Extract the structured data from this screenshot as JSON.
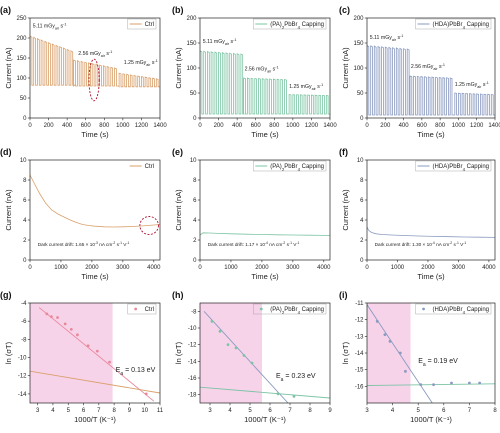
{
  "chart_data": [
    {
      "id": "a",
      "panel_label": "(a)",
      "type": "line",
      "xlabel": "Time (s)",
      "ylabel": "Current (nA)",
      "xlim": [
        0,
        1400
      ],
      "ylim": [
        0,
        250
      ],
      "xticks": [
        0,
        200,
        400,
        600,
        800,
        1000,
        1200,
        1400
      ],
      "yticks": [
        0,
        50,
        100,
        150,
        200,
        250
      ],
      "legend": {
        "text": "Ctrl",
        "position": "top-right"
      },
      "color": "#d9a06b",
      "series": [
        {
          "name": "Ctrl",
          "type": "pulse",
          "period": 40,
          "duty": 0.5,
          "segments": [
            {
              "t0": 0,
              "t1": 470,
              "base": 82,
              "on_start": 205,
              "on_end": 168
            },
            {
              "t0": 470,
              "t1": 960,
              "base": 80,
              "on_start": 145,
              "on_end": 125
            },
            {
              "t0": 960,
              "t1": 1400,
              "base": 78,
              "on_start": 112,
              "on_end": 98
            }
          ]
        }
      ],
      "annotations": [
        {
          "text": "5.11 mGy",
          "sub": "air",
          "tail": " s",
          "sup": "-1",
          "x": 30,
          "y": 226
        },
        {
          "text": "2.56 mGy",
          "sub": "air",
          "tail": " s",
          "sup": "-1",
          "x": 520,
          "y": 158
        },
        {
          "text": "1.25 mGy",
          "sub": "air",
          "tail": " s",
          "sup": "-1",
          "x": 1010,
          "y": 135
        }
      ],
      "circles": [
        {
          "cx": 690,
          "cy": 95,
          "rx": 55,
          "ry": 52
        }
      ]
    },
    {
      "id": "b",
      "panel_label": "(b)",
      "type": "line",
      "xlabel": "Time (s)",
      "ylabel": "Current (nA)",
      "xlim": [
        0,
        1400
      ],
      "ylim": [
        0,
        200
      ],
      "xticks": [
        0,
        200,
        400,
        600,
        800,
        1000,
        1200,
        1400
      ],
      "yticks": [
        0,
        50,
        100,
        150,
        200
      ],
      "legend": {
        "text": "(PA)",
        "sub": "2",
        "tail": "PbBr",
        "sub2": "4",
        "tail2": " Capping",
        "position": "top-right"
      },
      "color": "#7cc4a4",
      "series": [
        {
          "name": "(PA)2PbBr4 Capping",
          "type": "pulse",
          "period": 40,
          "duty": 0.5,
          "segments": [
            {
              "t0": 0,
              "t1": 470,
              "base": 8,
              "on_start": 134,
              "on_end": 128
            },
            {
              "t0": 470,
              "t1": 960,
              "base": 8,
              "on_start": 80,
              "on_end": 77
            },
            {
              "t0": 960,
              "t1": 1400,
              "base": 8,
              "on_start": 47,
              "on_end": 45
            }
          ]
        }
      ],
      "annotations": [
        {
          "text": "5.11 mGy",
          "sub": "air",
          "tail": " s",
          "sup": "-1",
          "x": 30,
          "y": 150
        },
        {
          "text": "2.56 mGy",
          "sub": "air",
          "tail": " s",
          "sup": "-1",
          "x": 480,
          "y": 95
        },
        {
          "text": "1.25 mGy",
          "sub": "air",
          "tail": " s",
          "sup": "-1",
          "x": 960,
          "y": 60
        }
      ]
    },
    {
      "id": "c",
      "panel_label": "(c)",
      "type": "line",
      "xlabel": "Time (s)",
      "ylabel": "Current (nA)",
      "xlim": [
        0,
        1400
      ],
      "ylim": [
        0,
        200
      ],
      "xticks": [
        0,
        200,
        400,
        600,
        800,
        1000,
        1200,
        1400
      ],
      "yticks": [
        0,
        50,
        100,
        150,
        200
      ],
      "legend": {
        "text": "(HDA)PbBr",
        "sub": "4",
        "tail": " Capping",
        "position": "top-right"
      },
      "color": "#8a9ac0",
      "series": [
        {
          "name": "(HDA)PbBr4 Capping",
          "type": "pulse",
          "period": 40,
          "duty": 0.5,
          "segments": [
            {
              "t0": 0,
              "t1": 470,
              "base": 6,
              "on_start": 145,
              "on_end": 138
            },
            {
              "t0": 470,
              "t1": 960,
              "base": 6,
              "on_start": 84,
              "on_end": 80
            },
            {
              "t0": 960,
              "t1": 1400,
              "base": 6,
              "on_start": 50,
              "on_end": 47
            }
          ]
        }
      ],
      "annotations": [
        {
          "text": "5.11 mGy",
          "sub": "air",
          "tail": " s",
          "sup": "-1",
          "x": 30,
          "y": 158
        },
        {
          "text": "2.56 mGy",
          "sub": "air",
          "tail": " s",
          "sup": "-1",
          "x": 480,
          "y": 100
        },
        {
          "text": "1.25 mGy",
          "sub": "air",
          "tail": " s",
          "sup": "-1",
          "x": 960,
          "y": 64
        }
      ]
    },
    {
      "id": "d",
      "panel_label": "(d)",
      "type": "line",
      "xlabel": "Time (s)",
      "ylabel": "Current (nA)",
      "xlim": [
        0,
        4200
      ],
      "ylim": [
        0,
        10
      ],
      "xticks": [
        0,
        1000,
        2000,
        3000,
        4000
      ],
      "yticks": [
        0,
        2,
        4,
        6,
        8,
        10
      ],
      "legend": {
        "text": "Ctrl",
        "position": "top-right"
      },
      "color": "#d9a06b",
      "series": [
        {
          "name": "Ctrl",
          "x": [
            0,
            150,
            300,
            500,
            700,
            900,
            1100,
            1300,
            1500,
            1700,
            1900,
            2100,
            2400,
            2700,
            3000,
            3300,
            3600,
            3800,
            4000,
            4200
          ],
          "y": [
            8.5,
            7.6,
            6.7,
            5.7,
            5.0,
            4.6,
            4.3,
            4.0,
            3.75,
            3.55,
            3.45,
            3.38,
            3.32,
            3.3,
            3.32,
            3.35,
            3.4,
            3.45,
            3.5,
            3.55
          ]
        }
      ],
      "annotations": [
        {
          "text": "Dark current drift: 1.65 × 10",
          "sup": "-3",
          "tail": " nA cm",
          "sup2": "-2",
          "tail2": " s",
          "sup3": "-1",
          "tail3": " V",
          "sup4": "-1",
          "x": 250,
          "y": 1.4
        }
      ],
      "circles": [
        {
          "cx": 3850,
          "cy": 3.45,
          "rx": 300,
          "ry": 0.9
        }
      ]
    },
    {
      "id": "e",
      "panel_label": "(e)",
      "type": "line",
      "xlabel": "Time (s)",
      "ylabel": "Current (nA)",
      "xlim": [
        0,
        4200
      ],
      "ylim": [
        0,
        10
      ],
      "xticks": [
        0,
        1000,
        2000,
        3000,
        4000
      ],
      "yticks": [
        0,
        2,
        4,
        6,
        8,
        10
      ],
      "legend": {
        "text": "(PA)",
        "sub": "2",
        "tail": "PbBr",
        "sub2": "4",
        "tail2": " Capping",
        "position": "top-right"
      },
      "color": "#7cc4a4",
      "series": [
        {
          "name": "(PA)2PbBr4 Capping",
          "x": [
            0,
            100,
            300,
            600,
            1000,
            1500,
            2000,
            2500,
            3000,
            3500,
            4000,
            4200
          ],
          "y": [
            2.5,
            2.72,
            2.7,
            2.66,
            2.62,
            2.58,
            2.55,
            2.52,
            2.5,
            2.48,
            2.46,
            2.45
          ]
        }
      ],
      "annotations": [
        {
          "text": "Dark current drift: 1.17 × 10",
          "sup": "-4",
          "tail": " nA cm",
          "sup2": "-2",
          "tail2": " s",
          "sup3": "-1",
          "tail3": " V",
          "sup4": "-1",
          "x": 250,
          "y": 1.4
        }
      ]
    },
    {
      "id": "f",
      "panel_label": "(f)",
      "type": "line",
      "xlabel": "Time (s)",
      "ylabel": "Current (nA)",
      "xlim": [
        0,
        4200
      ],
      "ylim": [
        0,
        10
      ],
      "xticks": [
        0,
        1000,
        2000,
        3000,
        4000
      ],
      "yticks": [
        0,
        2,
        4,
        6,
        8,
        10
      ],
      "legend": {
        "text": "(HDA)PbBr",
        "sub": "4",
        "tail": " Capping",
        "position": "top-right"
      },
      "color": "#8a9ac0",
      "series": [
        {
          "name": "(HDA)PbBr4 Capping",
          "x": [
            0,
            60,
            150,
            300,
            500,
            800,
            1200,
            1700,
            2200,
            2700,
            3200,
            3700,
            4200
          ],
          "y": [
            3.3,
            2.95,
            2.75,
            2.62,
            2.55,
            2.5,
            2.45,
            2.4,
            2.36,
            2.33,
            2.3,
            2.28,
            2.26
          ]
        }
      ],
      "annotations": [
        {
          "text": "Dark current drift: 1.30 × 10",
          "sup": "-4",
          "tail": " nA cm",
          "sup2": "-2",
          "tail2": " s",
          "sup3": "-1",
          "tail3": " V",
          "sup4": "-1",
          "x": 250,
          "y": 1.4
        }
      ]
    },
    {
      "id": "g",
      "panel_label": "(g)",
      "type": "scatter",
      "xlabel": "1000/T (K⁻¹)",
      "ylabel": "ln (σT)",
      "xlim": [
        2.5,
        11
      ],
      "ylim": [
        -15,
        -4
      ],
      "xticks": [
        3,
        4,
        5,
        6,
        7,
        8,
        9,
        10,
        11
      ],
      "yticks": [
        -14,
        -12,
        -10,
        -8,
        -6,
        -4
      ],
      "legend": {
        "text": "Ctrl",
        "position": "top-right"
      },
      "color": "#e8889a",
      "shade": {
        "x0": 2.5,
        "x1": 7.9,
        "color": "#f7d3ea"
      },
      "points": {
        "x": [
          3.6,
          3.9,
          4.3,
          4.8,
          5.2,
          5.6,
          6.3,
          6.9,
          7.7,
          10.1
        ],
        "y": [
          -5.2,
          -5.5,
          -5.6,
          -6.3,
          -6.9,
          -7.5,
          -8.7,
          -9.3,
          -10.5,
          -14.0
        ]
      },
      "lines": [
        {
          "x": [
            3.1,
            10.6
          ],
          "y": [
            -4.5,
            -14.8
          ],
          "color": "#e8889a"
        },
        {
          "x": [
            2.5,
            11
          ],
          "y": [
            -11.5,
            -13.9
          ],
          "color": "#d9a06b"
        }
      ],
      "annotation": {
        "text": "E",
        "sub": "a",
        "tail": " = 0.13 eV",
        "x": 8.1,
        "y": -11.6
      }
    },
    {
      "id": "h",
      "panel_label": "(h)",
      "type": "scatter",
      "xlabel": "1000/T (K⁻¹)",
      "ylabel": "ln (σT)",
      "xlim": [
        2.5,
        9
      ],
      "ylim": [
        -19,
        -7
      ],
      "xticks": [
        3,
        4,
        5,
        6,
        7,
        8,
        9
      ],
      "yticks": [
        -18,
        -16,
        -14,
        -12,
        -10,
        -8
      ],
      "legend": {
        "text": "(PA)",
        "sub": "2",
        "tail": "PbBr",
        "sub2": "4",
        "tail2": " Capping",
        "position": "top-right"
      },
      "color": "#7cc4a4",
      "shade": {
        "x0": 2.5,
        "x1": 5.6,
        "color": "#f7d3ea"
      },
      "points": {
        "x": [
          3.1,
          3.5,
          3.9,
          4.3,
          4.7,
          5.1,
          6.4,
          7.2
        ],
        "y": [
          -9.2,
          -10.4,
          -12.0,
          -12.4,
          -13.3,
          -14.2,
          -17.9,
          -18.2
        ]
      },
      "lines": [
        {
          "x": [
            2.7,
            6.9
          ],
          "y": [
            -8.0,
            -19.0
          ],
          "color": "#8a9ac0"
        },
        {
          "x": [
            2.5,
            9
          ],
          "y": [
            -17.1,
            -18.4
          ],
          "color": "#7cc4a4"
        }
      ],
      "annotation": {
        "text": "E",
        "sub": "a",
        "tail": " = 0.23 eV",
        "x": 6.3,
        "y": -16.0
      }
    },
    {
      "id": "i",
      "panel_label": "(i)",
      "type": "scatter",
      "xlabel": "1000/T (K⁻¹)",
      "ylabel": "ln (σT)",
      "xlim": [
        3,
        8
      ],
      "ylim": [
        -17,
        -11
      ],
      "xticks": [
        3,
        4,
        5,
        6,
        7,
        8
      ],
      "yticks": [
        -16,
        -15,
        -14,
        -13,
        -12,
        -11
      ],
      "legend": {
        "text": "(HDA)PbBr",
        "sub": "4",
        "tail": " Capping",
        "position": "top-right"
      },
      "color": "#8a9ac0",
      "shade": {
        "x0": 3,
        "x1": 4.7,
        "color": "#f7d3ea"
      },
      "points": {
        "x": [
          3.4,
          3.7,
          3.9,
          4.3,
          4.5,
          5.1,
          5.6,
          6.3,
          7.0,
          7.4
        ],
        "y": [
          -12.1,
          -12.9,
          -13.3,
          -14.0,
          -15.1,
          -15.9,
          -15.9,
          -15.8,
          -15.8,
          -15.8
        ]
      },
      "lines": [
        {
          "x": [
            3.0,
            5.55
          ],
          "y": [
            -11.1,
            -17.0
          ],
          "color": "#8a9ac0"
        },
        {
          "x": [
            3.0,
            8.0
          ],
          "y": [
            -15.95,
            -15.85
          ],
          "color": "#7cc4a4"
        }
      ],
      "annotation": {
        "text": "E",
        "sub": "a",
        "tail": " = 0.19 eV",
        "x": 5.0,
        "y": -14.6
      }
    }
  ]
}
